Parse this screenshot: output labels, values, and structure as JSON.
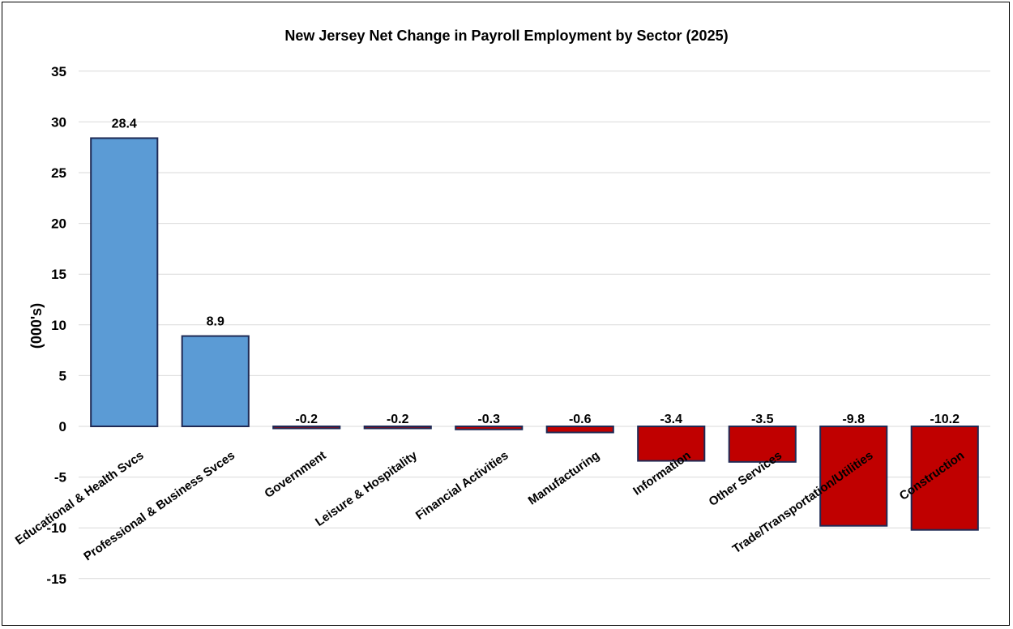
{
  "chart_data": {
    "type": "bar",
    "title": "New Jersey Net Change in Payroll Employment by Sector (2025)",
    "ylabel": "(000's)",
    "xlabel": "",
    "ylim": [
      -15,
      35
    ],
    "ytick_step": 5,
    "grid": true,
    "categories": [
      "Educational & Health Svcs",
      "Professional & Business Svces",
      "Government",
      "Leisure & Hospitality",
      "Financial Activities",
      "Manufacturing",
      "Information",
      "Other Services",
      "Trade/Transportation/Utilities",
      "Construction"
    ],
    "values": [
      28.4,
      8.9,
      -0.2,
      -0.2,
      -0.3,
      -0.6,
      -3.4,
      -3.5,
      -9.8,
      -10.2
    ],
    "data_labels": [
      "28.4",
      "8.9",
      "-0.2",
      "-0.2",
      "-0.3",
      "-0.6",
      "-3.4",
      "-3.5",
      "-9.8",
      "-10.2"
    ],
    "colors": {
      "positive": "#5b9bd5",
      "negative": "#c00000",
      "outline": "#1f2a55"
    }
  }
}
